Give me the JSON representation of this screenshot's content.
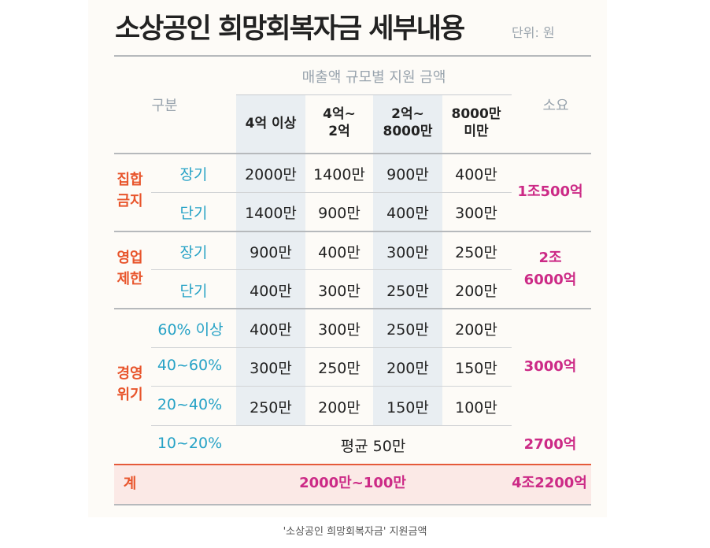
{
  "title": "소상공인 희망회복자금 세부내용",
  "unit": "단위: 원",
  "header": {
    "group_header": "매출액 규모별 지원 금액",
    "category": "구분",
    "columns": [
      "4억 이상",
      "4억~\n2억",
      "2억~\n8000만",
      "8000만\n미만"
    ],
    "cost": "소요"
  },
  "groups": [
    {
      "name": "집합\n금지",
      "rows": [
        {
          "label": "장기",
          "values": [
            "2000만",
            "1400만",
            "900만",
            "400만"
          ]
        },
        {
          "label": "단기",
          "values": [
            "1400만",
            "900만",
            "400만",
            "300만"
          ]
        }
      ],
      "cost": "1조500억"
    },
    {
      "name": "영업\n제한",
      "rows": [
        {
          "label": "장기",
          "values": [
            "900만",
            "400만",
            "300만",
            "250만"
          ]
        },
        {
          "label": "단기",
          "values": [
            "400만",
            "300만",
            "250만",
            "200만"
          ]
        }
      ],
      "cost": "2조\n6000억"
    },
    {
      "name": "경영\n위기",
      "rows": [
        {
          "label": "60% 이상",
          "values": [
            "400만",
            "300만",
            "250만",
            "200만"
          ]
        },
        {
          "label": "40~60%",
          "values": [
            "300만",
            "250만",
            "200만",
            "150만"
          ]
        },
        {
          "label": "20~40%",
          "values": [
            "250만",
            "200만",
            "150만",
            "100만"
          ]
        }
      ],
      "cost": "3000억",
      "extra": {
        "label": "10~20%",
        "value": "평균 50만",
        "cost": "2700억"
      }
    }
  ],
  "total": {
    "label": "계",
    "range": "2000만~100만",
    "cost": "4조2200억"
  },
  "caption": "'소상공인 희망회복자금' 지원금액"
}
